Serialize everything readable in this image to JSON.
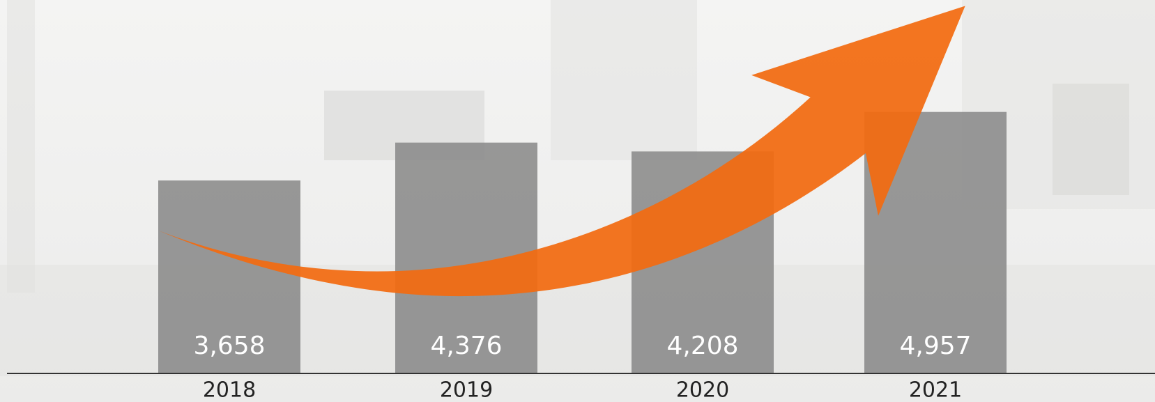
{
  "chart_data": {
    "type": "bar",
    "categories": [
      "2018",
      "2019",
      "2020",
      "2021"
    ],
    "values": [
      3658,
      4376,
      4208,
      4957
    ],
    "value_labels": [
      "3,658",
      "4,376",
      "4,208",
      "4,957"
    ],
    "color": "#8a8a8a",
    "ylim": [
      0,
      7000
    ]
  }
}
